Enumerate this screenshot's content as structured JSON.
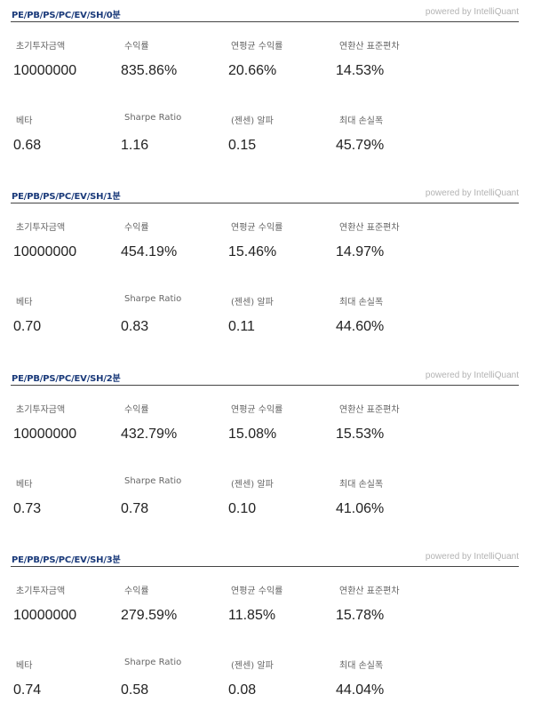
{
  "powered_by": "powered by IntelliQuant",
  "sections": [
    {
      "title": "PE/PB/PS/PC/EV/SH/0분",
      "labels": [
        "초기투자금액",
        "수익률",
        "연평균 수익률",
        "연환산 표준편차",
        "베타",
        "Sharpe Ratio",
        "(젠센) 알파",
        "최대 손실폭"
      ],
      "values": [
        "10000000",
        "835.86%",
        "20.66%",
        "14.53%",
        "0.68",
        "1.16",
        "0.15",
        "45.79%"
      ]
    },
    {
      "title": "PE/PB/PS/PC/EV/SH/1분",
      "labels": [
        "초기투자금액",
        "수익률",
        "연평균 수익률",
        "연환산 표준편차",
        "베타",
        "Sharpe Ratio",
        "(젠센) 알파",
        "최대 손실폭"
      ],
      "values": [
        "10000000",
        "454.19%",
        "15.46%",
        "14.97%",
        "0.70",
        "0.83",
        "0.11",
        "44.60%"
      ]
    },
    {
      "title": "PE/PB/PS/PC/EV/SH/2분",
      "labels": [
        "초기투자금액",
        "수익률",
        "연평균 수익률",
        "연환산 표준편차",
        "베타",
        "Sharpe Ratio",
        "(젠센) 알파",
        "최대 손실폭"
      ],
      "values": [
        "10000000",
        "432.79%",
        "15.08%",
        "15.53%",
        "0.73",
        "0.78",
        "0.10",
        "41.06%"
      ]
    },
    {
      "title": "PE/PB/PS/PC/EV/SH/3분",
      "labels": [
        "초기투자금액",
        "수익률",
        "연평균 수익률",
        "연환산 표준편차",
        "베타",
        "Sharpe Ratio",
        "(젠센) 알파",
        "최대 손실폭"
      ],
      "values": [
        "10000000",
        "279.59%",
        "11.85%",
        "15.78%",
        "0.74",
        "0.58",
        "0.08",
        "44.04%"
      ]
    }
  ]
}
